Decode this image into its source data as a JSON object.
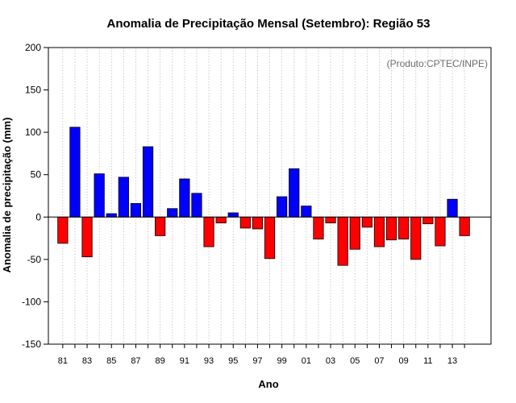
{
  "chart_data": {
    "type": "bar",
    "title": "Anomalia de Precipitação Mensal (Setembro): Região 53",
    "xlabel": "Ano",
    "ylabel": "Anomalia de precipitação (mm)",
    "credit": "(Produto:CPTEC/INPE)",
    "ylim": [
      -150,
      200
    ],
    "yticks": [
      -150,
      -100,
      -50,
      0,
      50,
      100,
      150,
      200
    ],
    "xtick_labels": [
      "81",
      "83",
      "85",
      "87",
      "89",
      "91",
      "93",
      "95",
      "97",
      "99",
      "01",
      "03",
      "05",
      "07",
      "09",
      "11",
      "13"
    ],
    "categories": [
      "1981",
      "1982",
      "1983",
      "1984",
      "1985",
      "1986",
      "1987",
      "1988",
      "1989",
      "1990",
      "1991",
      "1992",
      "1993",
      "1994",
      "1995",
      "1996",
      "1997",
      "1998",
      "1999",
      "2000",
      "2001",
      "2002",
      "2003",
      "2004",
      "2005",
      "2006",
      "2007",
      "2008",
      "2009",
      "2010",
      "2011",
      "2012",
      "2013",
      "2014"
    ],
    "values": [
      -31,
      106,
      -47,
      51,
      4,
      47,
      16,
      83,
      -22,
      10,
      45,
      28,
      -35,
      -7,
      5,
      -13,
      -14,
      -49,
      24,
      57,
      13,
      -26,
      -7,
      -57,
      -38,
      -12,
      -35,
      -27,
      -26,
      -50,
      -8,
      -34,
      21,
      -22
    ],
    "grid": "vertical dotted",
    "colors": {
      "positive": "#0000ff",
      "negative": "#ff0000",
      "grid": "#bdbdbd",
      "zero_line": "#000000"
    }
  }
}
